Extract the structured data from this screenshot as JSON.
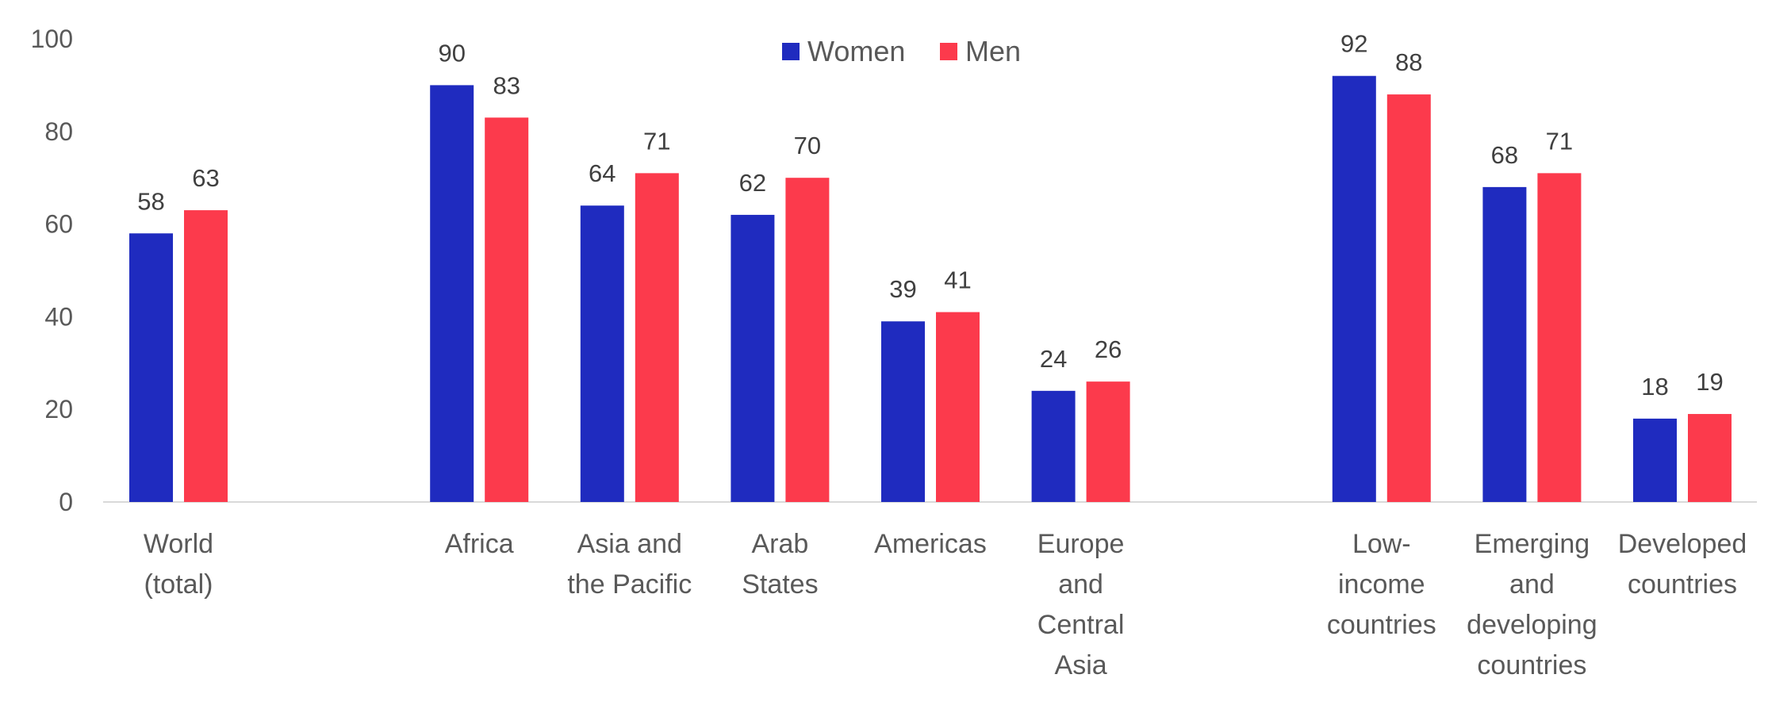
{
  "chart_data": {
    "type": "bar",
    "title": "",
    "xlabel": "",
    "ylabel": "",
    "ylim": [
      0,
      100
    ],
    "yticks": [
      0,
      20,
      40,
      60,
      80,
      100
    ],
    "grid": false,
    "legend_position": "top-center",
    "categories": [
      "World (total)",
      "",
      "Africa",
      "Asia and the Pacific",
      "Arab States",
      "Americas",
      "Europe and Central Asia",
      "",
      "Low-income countries",
      "Emerging and developing countries",
      "Developed countries"
    ],
    "category_label_lines": [
      [
        "World",
        "(total)"
      ],
      [],
      [
        "Africa"
      ],
      [
        "Asia and",
        "the Pacific"
      ],
      [
        "Arab",
        "States"
      ],
      [
        "Americas"
      ],
      [
        "Europe",
        "and",
        "Central",
        "Asia"
      ],
      [],
      [
        "Low-",
        "income",
        "countries"
      ],
      [
        "Emerging",
        "and",
        "developing",
        "countries"
      ],
      [
        "Developed",
        "countries"
      ]
    ],
    "series": [
      {
        "name": "Women",
        "color": "#1f2bbf",
        "values": [
          58,
          null,
          90,
          64,
          62,
          39,
          24,
          null,
          92,
          68,
          18
        ]
      },
      {
        "name": "Men",
        "color": "#fc3a4c",
        "values": [
          63,
          null,
          83,
          71,
          70,
          41,
          26,
          null,
          88,
          71,
          19
        ]
      }
    ]
  }
}
